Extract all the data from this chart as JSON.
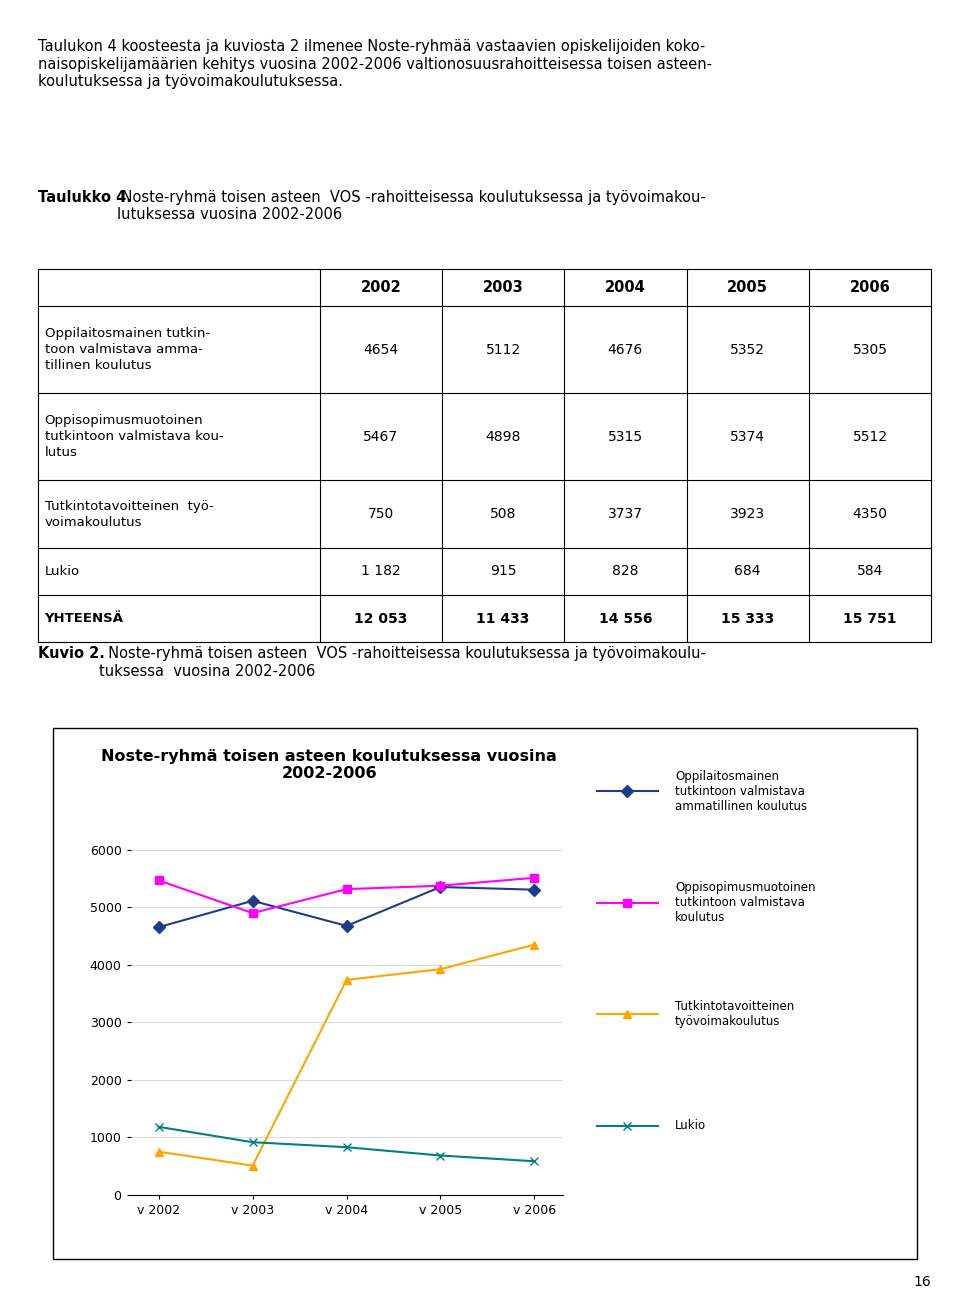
{
  "page_text_top": "Taulukon 4 koosteesta ja kuviosta 2 ilmenee Noste-ryhmää vastaavien opiskelijoiden koko-\nnaisopiskelijamäärien kehitys vuosina 2002-2006 valtionosuusrahoitteisessa toisen asteen-\nkoulutuksessa ja työvoimakoulutuksessa.",
  "table_title_bold": "Taulukko 4.",
  "table_title_rest": " Noste-ryhmä toisen asteen  VOS -rahoitteisessa koulutuksessa ja työvoimakou-\nlutuksessa vuosina 2002-2006",
  "table_years": [
    "2002",
    "2003",
    "2004",
    "2005",
    "2006"
  ],
  "value_display": [
    [
      "4654",
      "5112",
      "4676",
      "5352",
      "5305"
    ],
    [
      "5467",
      "4898",
      "5315",
      "5374",
      "5512"
    ],
    [
      "750",
      "508",
      "3737",
      "3923",
      "4350"
    ],
    [
      "1 182",
      "915",
      "828",
      "684",
      "584"
    ],
    [
      "12 053",
      "11 433",
      "14 556",
      "15 333",
      "15 751"
    ]
  ],
  "row_labels": [
    "Oppilaitosmainen tutkin-\ntoon valmistava amma-\ntillinen koulutus",
    "Oppisopimusmuotoinen\ntutkintoon valmistava kou-\nlutus",
    "Tutkintotavoitteinen  työ-\nvoimakoulutus",
    "Lukio",
    "YHTEENSÄ"
  ],
  "row_bold": [
    false,
    false,
    false,
    false,
    true
  ],
  "kuvio_title_bold": "Kuvio 2.",
  "kuvio_title_rest": "  Noste-ryhmä toisen asteen  VOS -rahoitteisessa koulutuksessa ja työvoimakoulu-\ntuksessa  vuosina 2002-2006",
  "chart_title": "Noste-ryhmä toisen asteen koulutuksessa vuosina\n2002-2006",
  "chart_x_labels": [
    "v 2002",
    "v 2003",
    "v 2004",
    "v 2005",
    "v 2006"
  ],
  "chart_series": [
    {
      "label": "Oppilaitosmainen\ntutkintoon valmistava\nammatillinen koulutus",
      "values": [
        4654,
        5112,
        4676,
        5352,
        5305
      ],
      "color": "#1F3C88",
      "marker": "D",
      "linestyle": "-"
    },
    {
      "label": "Oppisopimusmuotoinen\ntutkintoon valmistava\nkoulutus",
      "values": [
        5467,
        4898,
        5315,
        5374,
        5512
      ],
      "color": "#FF00FF",
      "marker": "s",
      "linestyle": "-"
    },
    {
      "label": "Tutkintotavoitteinen\ntyövoimakoulutus",
      "values": [
        750,
        508,
        3737,
        3923,
        4350
      ],
      "color": "#FFA500",
      "marker": "^",
      "linestyle": "-"
    },
    {
      "label": "Lukio",
      "values": [
        1182,
        915,
        828,
        684,
        584
      ],
      "color": "#008080",
      "marker": "x",
      "linestyle": "-"
    }
  ],
  "chart_ylim": [
    0,
    6000
  ],
  "chart_yticks": [
    0,
    1000,
    2000,
    3000,
    4000,
    5000,
    6000
  ],
  "page_number": "16",
  "background_color": "#ffffff"
}
